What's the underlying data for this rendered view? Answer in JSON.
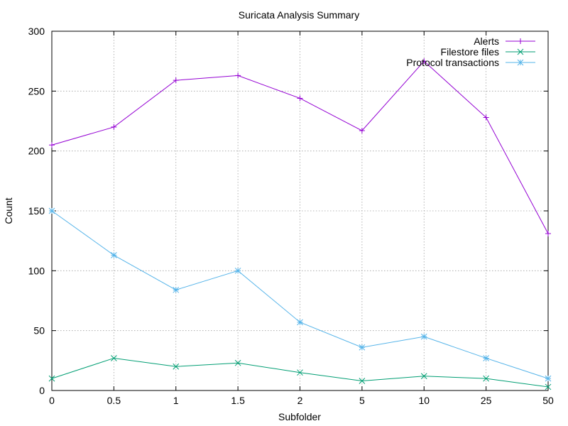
{
  "chart_data": {
    "type": "line",
    "title": "Suricata Analysis Summary",
    "xlabel": "Subfolder",
    "ylabel": "Count",
    "categories": [
      "0",
      "0.5",
      "1",
      "1.5",
      "2",
      "5",
      "10",
      "25",
      "50"
    ],
    "ylim": [
      0,
      300
    ],
    "yticks": [
      "0",
      "50",
      "100",
      "150",
      "200",
      "250",
      "300"
    ],
    "grid": true,
    "legend_position": "top-right",
    "series": [
      {
        "name": "Alerts",
        "color": "#9400d3",
        "marker": "plus",
        "values": [
          205,
          220,
          259,
          263,
          244,
          217,
          275,
          228,
          131
        ]
      },
      {
        "name": "Filestore files",
        "color": "#009e73",
        "marker": "cross",
        "values": [
          10,
          27,
          20,
          23,
          15,
          8,
          12,
          10,
          3
        ]
      },
      {
        "name": "Protocol transactions",
        "color": "#56b4e9",
        "marker": "star",
        "values": [
          150,
          113,
          84,
          100,
          57,
          36,
          45,
          27,
          10
        ]
      }
    ]
  }
}
